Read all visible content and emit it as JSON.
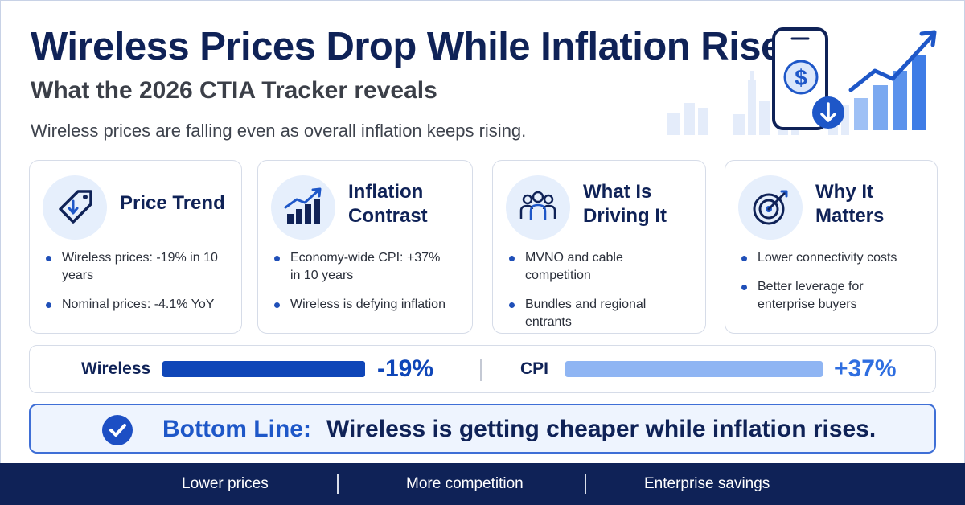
{
  "header": {
    "title": "Wireless Prices Drop While Inflation Rises",
    "subtitle": "What the 2026 CTIA Tracker reveals",
    "tagline": "Wireless prices are falling even as overall inflation keeps rising."
  },
  "hero": {
    "icons": [
      "smartphone-dollar-icon",
      "down-arrow-badge-icon",
      "rising-bar-chart-icon",
      "city-skyline-icon"
    ]
  },
  "cards": [
    {
      "icon": "price-tag-down-icon",
      "title": "Price Trend",
      "bullets": [
        "Wireless prices: -19% in 10 years",
        "Nominal prices: -4.1% YoY"
      ]
    },
    {
      "icon": "bar-chart-up-icon",
      "title_line1": "Inflation",
      "title_line2": "Contrast",
      "bullets": [
        "Economy-wide CPI: +37% in 10 years",
        "Wireless is defying inflation"
      ]
    },
    {
      "icon": "people-group-icon",
      "title_line1": "What Is",
      "title_line2": "Driving It",
      "bullets": [
        "MVNO and cable competition",
        "Bundles and regional entrants"
      ]
    },
    {
      "icon": "target-icon",
      "title_line1": "Why It",
      "title_line2": "Matters",
      "bullets": [
        "Lower connectivity costs",
        "Better leverage for enterprise buyers"
      ]
    }
  ],
  "comparison": {
    "wireless": {
      "label": "Wireless",
      "value": "-19%",
      "color": "#0f46b8",
      "fill": 1.0
    },
    "cpi": {
      "label": "CPI",
      "value": "+37%",
      "color": "#8fb5f3",
      "fill": 1.0
    }
  },
  "bottom_line": {
    "label": "Bottom Line:",
    "text": "Wireless is getting cheaper while inflation rises."
  },
  "footer": {
    "items": [
      "Lower prices",
      "More competition",
      "Enterprise savings"
    ]
  },
  "colors": {
    "navy": "#0f2257",
    "accent": "#1e57c8",
    "light_accent": "#e6effc"
  }
}
